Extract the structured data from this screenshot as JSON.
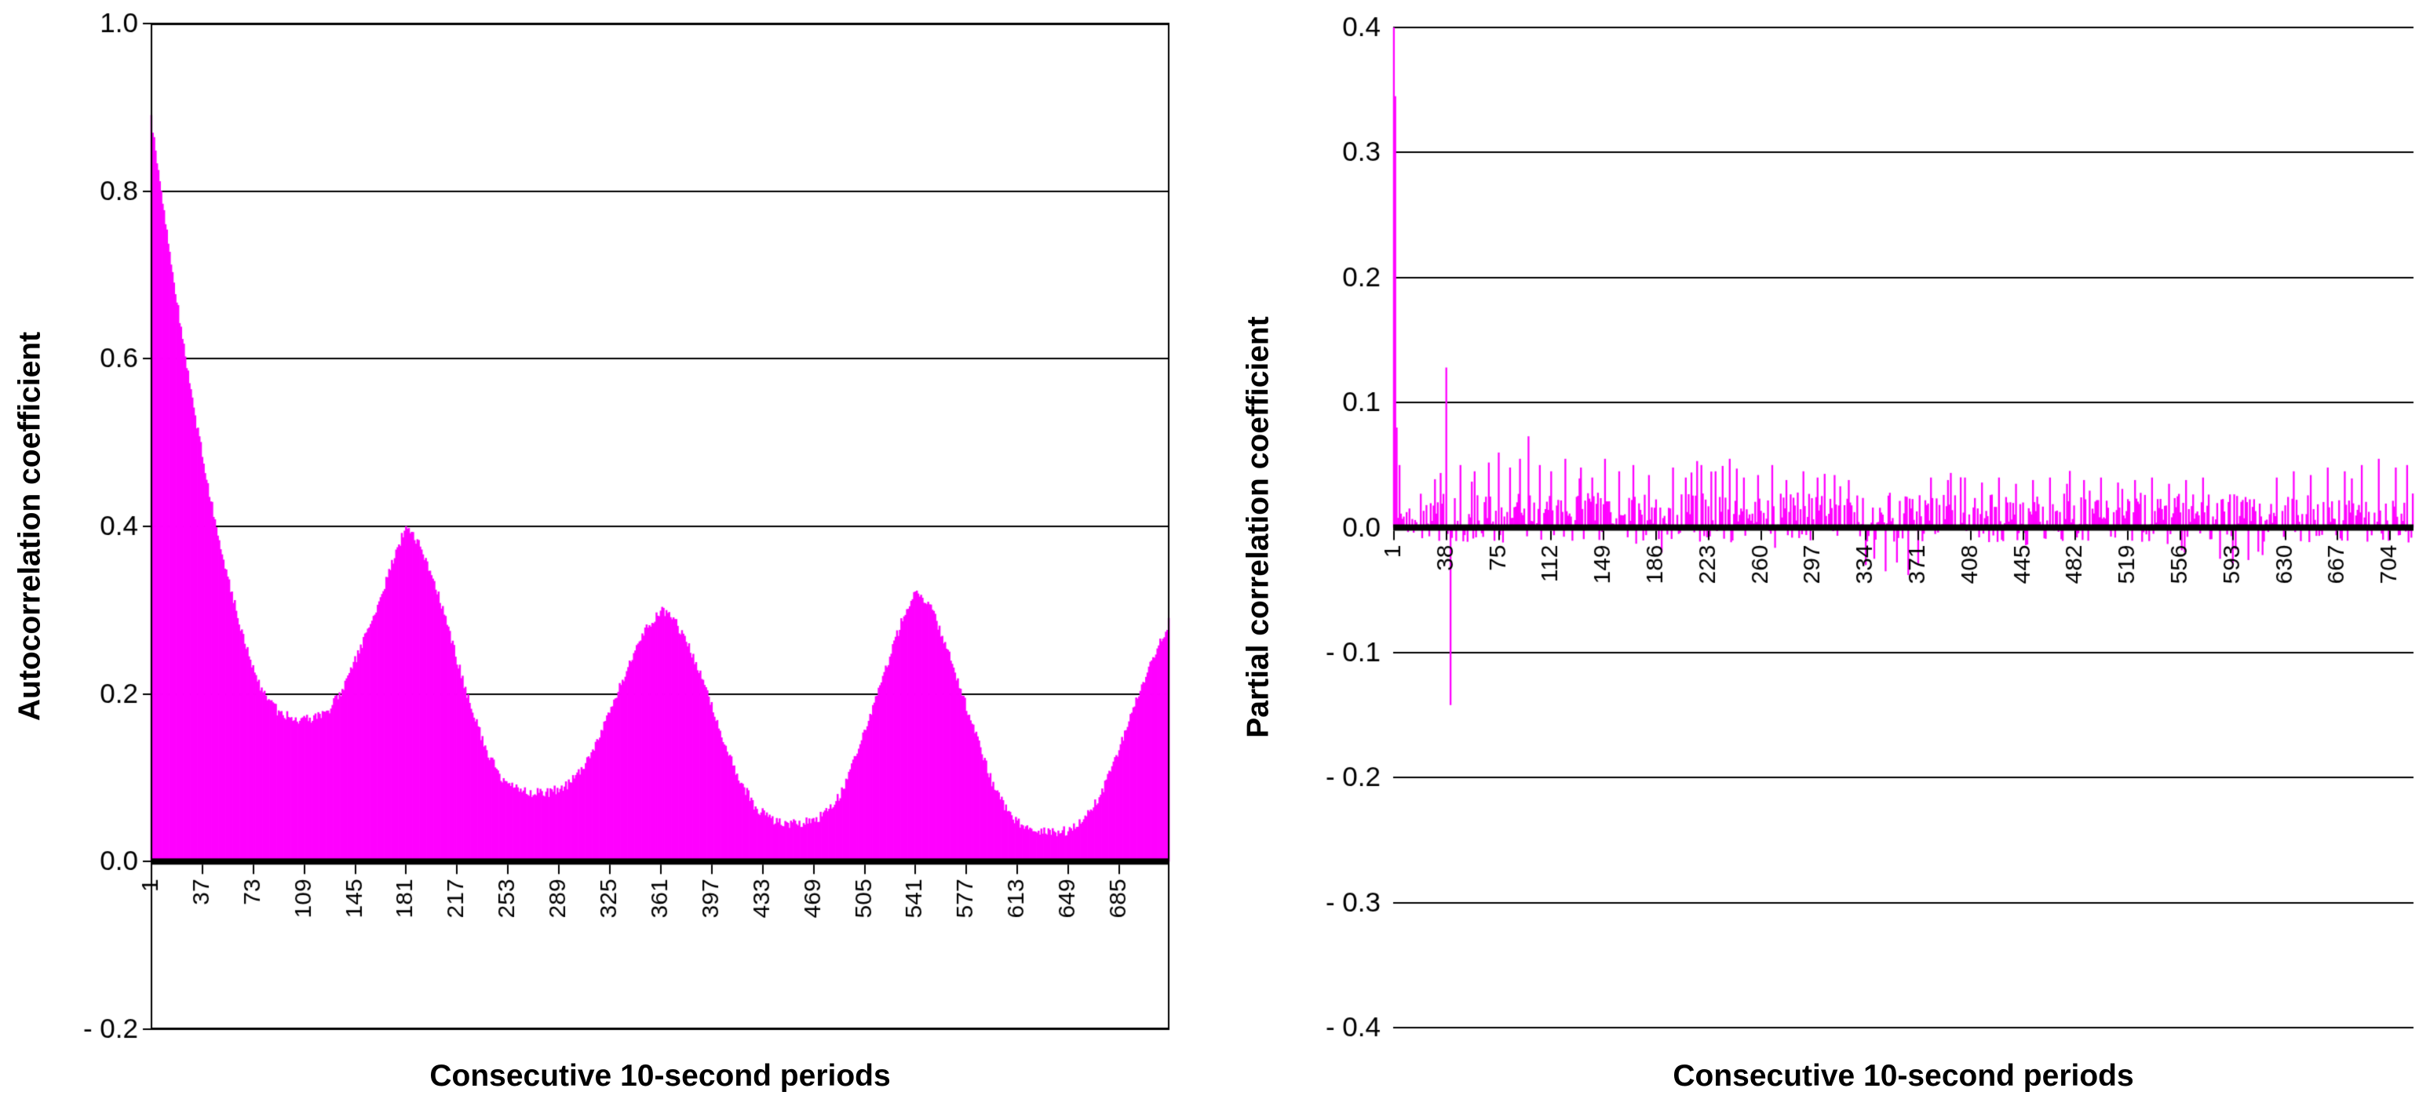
{
  "chart_data": [
    {
      "type": "bar",
      "name": "autocorrelation",
      "title": "",
      "xlabel": "Consecutive 10-second periods",
      "ylabel": "Autocorrelation coefficient",
      "ylim": [
        -0.2,
        1.0
      ],
      "yticks": [
        {
          "v": 1.0,
          "label": "1.0"
        },
        {
          "v": 0.8,
          "label": "0.8"
        },
        {
          "v": 0.6,
          "label": "0.6"
        },
        {
          "v": 0.4,
          "label": "0.4"
        },
        {
          "v": 0.2,
          "label": "0.2"
        },
        {
          "v": 0.0,
          "label": "0.0"
        },
        {
          "v": -0.2,
          "label": "- 0.2"
        }
      ],
      "xticks": [
        1,
        37,
        73,
        109,
        145,
        181,
        217,
        253,
        289,
        325,
        361,
        397,
        433,
        469,
        505,
        541,
        577,
        613,
        649,
        685
      ],
      "x_range": [
        1,
        720
      ],
      "bar_color": "#FF00FF",
      "axis_color": "#000000",
      "grid": true,
      "border": true,
      "noise_amplitude": 0.006,
      "envelope_keypoints": [
        [
          1,
          0.885
        ],
        [
          8,
          0.8
        ],
        [
          18,
          0.68
        ],
        [
          30,
          0.55
        ],
        [
          42,
          0.44
        ],
        [
          55,
          0.34
        ],
        [
          67,
          0.26
        ],
        [
          78,
          0.21
        ],
        [
          90,
          0.18
        ],
        [
          102,
          0.17
        ],
        [
          114,
          0.17
        ],
        [
          126,
          0.18
        ],
        [
          138,
          0.21
        ],
        [
          150,
          0.26
        ],
        [
          162,
          0.31
        ],
        [
          172,
          0.36
        ],
        [
          181,
          0.4
        ],
        [
          190,
          0.38
        ],
        [
          200,
          0.34
        ],
        [
          212,
          0.27
        ],
        [
          224,
          0.2
        ],
        [
          236,
          0.14
        ],
        [
          248,
          0.1
        ],
        [
          258,
          0.088
        ],
        [
          270,
          0.082
        ],
        [
          282,
          0.082
        ],
        [
          294,
          0.09
        ],
        [
          306,
          0.11
        ],
        [
          318,
          0.15
        ],
        [
          330,
          0.2
        ],
        [
          342,
          0.25
        ],
        [
          352,
          0.28
        ],
        [
          361,
          0.3
        ],
        [
          370,
          0.29
        ],
        [
          380,
          0.26
        ],
        [
          392,
          0.21
        ],
        [
          404,
          0.15
        ],
        [
          416,
          0.1
        ],
        [
          428,
          0.065
        ],
        [
          440,
          0.05
        ],
        [
          452,
          0.045
        ],
        [
          464,
          0.047
        ],
        [
          476,
          0.055
        ],
        [
          488,
          0.08
        ],
        [
          500,
          0.13
        ],
        [
          512,
          0.19
        ],
        [
          524,
          0.25
        ],
        [
          534,
          0.3
        ],
        [
          541,
          0.32
        ],
        [
          550,
          0.31
        ],
        [
          560,
          0.27
        ],
        [
          572,
          0.21
        ],
        [
          584,
          0.15
        ],
        [
          596,
          0.09
        ],
        [
          608,
          0.055
        ],
        [
          620,
          0.04
        ],
        [
          634,
          0.035
        ],
        [
          648,
          0.037
        ],
        [
          660,
          0.05
        ],
        [
          672,
          0.08
        ],
        [
          684,
          0.13
        ],
        [
          696,
          0.19
        ],
        [
          708,
          0.24
        ],
        [
          720,
          0.285
        ]
      ]
    },
    {
      "type": "bar",
      "name": "partial-correlation",
      "title": "",
      "xlabel": "Consecutive 10-second periods",
      "ylabel": "Partial correlation coefficient",
      "ylim": [
        -0.4,
        0.4
      ],
      "yticks": [
        {
          "v": 0.4,
          "label": "0.4"
        },
        {
          "v": 0.3,
          "label": "0.3"
        },
        {
          "v": 0.2,
          "label": "0.2"
        },
        {
          "v": 0.1,
          "label": "0.1"
        },
        {
          "v": 0.0,
          "label": "0.0"
        },
        {
          "v": -0.1,
          "label": "- 0.1"
        },
        {
          "v": -0.2,
          "label": "- 0.2"
        },
        {
          "v": -0.3,
          "label": "- 0.3"
        },
        {
          "v": -0.4,
          "label": "- 0.4"
        }
      ],
      "xticks": [
        1,
        38,
        75,
        112,
        149,
        186,
        223,
        260,
        297,
        334,
        371,
        408,
        445,
        482,
        519,
        556,
        593,
        630,
        667,
        704
      ],
      "x_range": [
        1,
        720
      ],
      "bar_color": "#FF00FF",
      "axis_color": "#000000",
      "grid": true,
      "border": false,
      "baseline_noise": {
        "min": -0.012,
        "max": 0.028
      },
      "spikes": [
        [
          1,
          0.9
        ],
        [
          2,
          0.345
        ],
        [
          3,
          0.08
        ],
        [
          5,
          0.05
        ],
        [
          38,
          0.128
        ],
        [
          41,
          -0.142
        ],
        [
          48,
          0.05
        ],
        [
          58,
          0.045
        ],
        [
          68,
          0.052
        ],
        [
          75,
          0.06
        ],
        [
          83,
          0.048
        ],
        [
          90,
          0.055
        ],
        [
          96,
          0.073
        ],
        [
          104,
          0.05
        ],
        [
          112,
          0.045
        ],
        [
          122,
          0.055
        ],
        [
          133,
          0.048
        ],
        [
          141,
          0.04
        ],
        [
          150,
          0.055
        ],
        [
          160,
          0.045
        ],
        [
          170,
          0.05
        ],
        [
          181,
          0.042
        ],
        [
          190,
          -0.02
        ],
        [
          198,
          0.048
        ],
        [
          207,
          0.04
        ],
        [
          218,
          0.05
        ],
        [
          228,
          0.045
        ],
        [
          238,
          0.055
        ],
        [
          248,
          0.04
        ],
        [
          258,
          0.042
        ],
        [
          268,
          0.05
        ],
        [
          278,
          0.038
        ],
        [
          290,
          0.045
        ],
        [
          300,
          0.04
        ],
        [
          312,
          0.042
        ],
        [
          322,
          0.038
        ],
        [
          334,
          -0.03
        ],
        [
          340,
          -0.025
        ],
        [
          348,
          -0.035
        ],
        [
          356,
          -0.028
        ],
        [
          364,
          -0.038
        ],
        [
          371,
          -0.03
        ],
        [
          380,
          0.04
        ],
        [
          392,
          0.038
        ],
        [
          404,
          0.04
        ],
        [
          416,
          0.036
        ],
        [
          428,
          0.04
        ],
        [
          440,
          0.035
        ],
        [
          452,
          0.038
        ],
        [
          464,
          0.04
        ],
        [
          476,
          0.035
        ],
        [
          488,
          0.038
        ],
        [
          500,
          0.04
        ],
        [
          512,
          0.036
        ],
        [
          524,
          0.038
        ],
        [
          536,
          0.04
        ],
        [
          548,
          0.035
        ],
        [
          560,
          0.038
        ],
        [
          572,
          0.04
        ],
        [
          584,
          -0.025
        ],
        [
          593,
          -0.03
        ],
        [
          604,
          -0.026
        ],
        [
          614,
          -0.022
        ],
        [
          624,
          0.04
        ],
        [
          636,
          0.045
        ],
        [
          648,
          0.042
        ],
        [
          660,
          0.048
        ],
        [
          672,
          0.045
        ],
        [
          684,
          0.05
        ],
        [
          696,
          0.055
        ],
        [
          708,
          0.048
        ],
        [
          716,
          0.05
        ]
      ]
    }
  ]
}
